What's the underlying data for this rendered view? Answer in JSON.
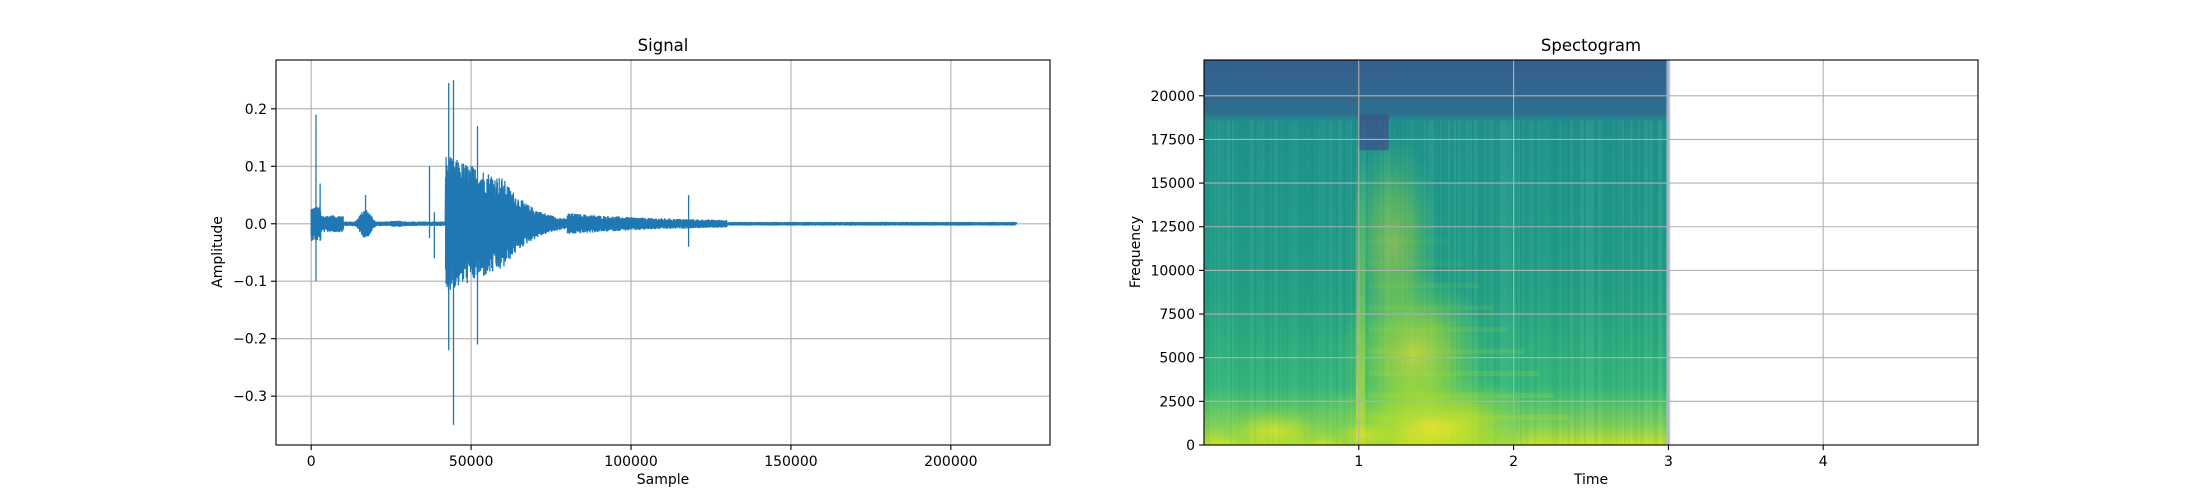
{
  "chart_data": [
    {
      "type": "line",
      "title": "Signal",
      "xlabel": "Sample",
      "ylabel": "Amplitude",
      "xlim": [
        -11000,
        231000
      ],
      "ylim": [
        -0.385,
        0.285
      ],
      "xticks": [
        0,
        50000,
        100000,
        150000,
        200000
      ],
      "xtick_labels": [
        "0",
        "50000",
        "100000",
        "150000",
        "200000"
      ],
      "yticks": [
        -0.3,
        -0.2,
        -0.1,
        0.0,
        0.1,
        0.2
      ],
      "ytick_labels": [
        "−0.3",
        "−0.2",
        "−0.1",
        "0.0",
        "0.1",
        "0.2"
      ],
      "grid": true,
      "color": "#1f77b4",
      "total_samples": 220500,
      "events": [
        {
          "sample": 1500,
          "max": 0.19,
          "min": -0.1
        },
        {
          "sample": 2800,
          "max": 0.07,
          "min": -0.03
        },
        {
          "sample": 17000,
          "max": 0.05,
          "min": -0.02
        },
        {
          "sample": 37000,
          "max": 0.1,
          "min": -0.025
        },
        {
          "sample": 38500,
          "max": 0.02,
          "min": -0.06
        },
        {
          "sample": 43000,
          "max": 0.245,
          "min": -0.22
        },
        {
          "sample": 44500,
          "max": 0.25,
          "min": -0.35
        },
        {
          "sample": 52000,
          "max": 0.17,
          "min": -0.21
        },
        {
          "sample": 118000,
          "max": 0.05,
          "min": -0.04
        }
      ]
    },
    {
      "type": "heatmap",
      "title": "Spectogram",
      "xlabel": "Time",
      "ylabel": "Frequency",
      "xlim": [
        0,
        5
      ],
      "ylim": [
        0,
        22050
      ],
      "xticks": [
        1,
        2,
        3,
        4
      ],
      "xtick_labels": [
        "1",
        "2",
        "3",
        "4"
      ],
      "yticks": [
        0,
        2500,
        5000,
        7500,
        10000,
        12500,
        15000,
        17500,
        20000
      ],
      "ytick_labels": [
        "0",
        "2500",
        "5000",
        "7500",
        "10000",
        "12500",
        "15000",
        "17500",
        "20000"
      ],
      "grid": true,
      "colormap": "viridis",
      "data_end_time": 3.0,
      "cutoff_frequency": 18600,
      "onset_time": 1.0
    }
  ]
}
